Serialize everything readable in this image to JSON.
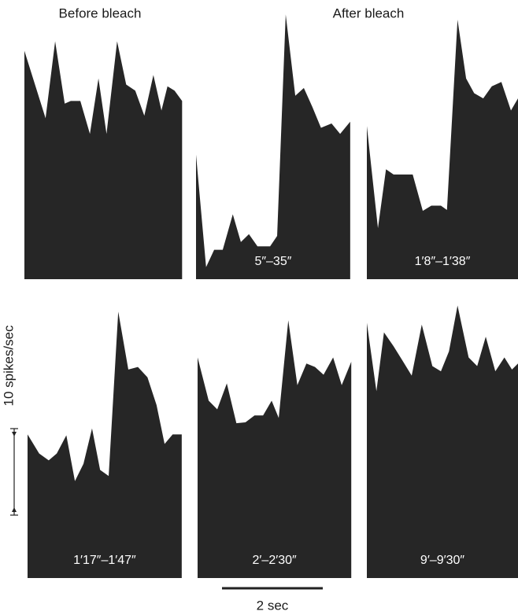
{
  "figure": {
    "left_heading": "Before bleach",
    "right_heading": "After bleach",
    "scale_y": {
      "value": 10,
      "label": "10 spikes/sec"
    },
    "scale_x": {
      "value": 2,
      "label": "2 sec"
    }
  },
  "chart_data": [
    {
      "type": "area",
      "color": "#262626",
      "x": [
        0,
        0.42,
        0.61,
        0.8,
        0.92,
        1.11,
        1.3,
        1.47,
        1.63,
        1.84,
        2.02,
        2.2,
        2.38,
        2.56,
        2.72,
        2.84,
        2.98,
        3.13
      ],
      "values": [
        26.4,
        18.6,
        27.5,
        20.3,
        20.6,
        20.6,
        16.8,
        23.2,
        16.8,
        27.5,
        22.5,
        21.8,
        18.9,
        23.6,
        19.5,
        22.3,
        21.8,
        20.6
      ]
    },
    {
      "type": "area",
      "color": "#262626",
      "title": "5″–35″",
      "x": [
        0,
        0.2,
        0.36,
        0.53,
        0.73,
        0.89,
        1.05,
        1.22,
        1.47,
        1.61,
        1.78,
        1.97,
        2.14,
        2.31,
        2.48,
        2.69,
        2.86,
        3.06
      ],
      "values": [
        14.4,
        1.4,
        3.4,
        3.4,
        7.5,
        4.3,
        5.2,
        3.8,
        3.8,
        5,
        30.6,
        21.2,
        22.1,
        19.9,
        17.5,
        18,
        16.8,
        18.2
      ]
    },
    {
      "type": "area",
      "color": "#262626",
      "title": "1′8″–1′38″",
      "x": [
        0,
        0.22,
        0.38,
        0.53,
        0.91,
        1.11,
        1.28,
        1.47,
        1.59,
        1.8,
        1.97,
        2.13,
        2.31,
        2.48,
        2.67,
        2.86,
        3.0
      ],
      "values": [
        17.7,
        5.9,
        12.7,
        12.1,
        12.1,
        7.9,
        8.5,
        8.5,
        8,
        30,
        23.2,
        21.5,
        20.9,
        22.3,
        22.8,
        19.5,
        20.9
      ]
    },
    {
      "type": "area",
      "color": "#262626",
      "title": "1′17″–1′47″",
      "x": [
        0,
        0.23,
        0.42,
        0.58,
        0.77,
        0.94,
        1.11,
        1.28,
        1.44,
        1.61,
        1.8,
        2.0,
        2.19,
        2.38,
        2.56,
        2.72,
        2.88,
        3.06
      ],
      "values": [
        16.6,
        14.4,
        13.6,
        14.4,
        16.5,
        11.2,
        13.2,
        17.3,
        12.5,
        11.8,
        30.8,
        24.1,
        24.4,
        23.2,
        20,
        15.5,
        16.6,
        16.6
      ]
    },
    {
      "type": "area",
      "color": "#262626",
      "title": "2′–2′30″",
      "x": [
        0,
        0.22,
        0.39,
        0.58,
        0.77,
        0.95,
        1.13,
        1.3,
        1.47,
        1.61,
        1.8,
        1.98,
        2.16,
        2.33,
        2.5,
        2.69,
        2.86,
        3.05
      ],
      "values": [
        25.5,
        20.5,
        19.5,
        22.5,
        17.9,
        18,
        18.8,
        18.8,
        20.5,
        18.5,
        29.8,
        22.3,
        24.8,
        24.4,
        23.5,
        25.5,
        22.3,
        25
      ]
    },
    {
      "type": "area",
      "color": "#262626",
      "title": "9′–9′30″",
      "x": [
        0,
        0.19,
        0.34,
        0.53,
        0.7,
        0.89,
        1.09,
        1.3,
        1.47,
        1.63,
        1.8,
        2.02,
        2.19,
        2.36,
        2.55,
        2.73,
        2.88,
        3.0
      ],
      "values": [
        29.5,
        21.6,
        28.4,
        26.8,
        25.2,
        23.4,
        29.3,
        24.5,
        23.9,
        26.2,
        31.5,
        25.5,
        24.5,
        27.9,
        23.9,
        25.5,
        24.1,
        24.8
      ]
    }
  ]
}
